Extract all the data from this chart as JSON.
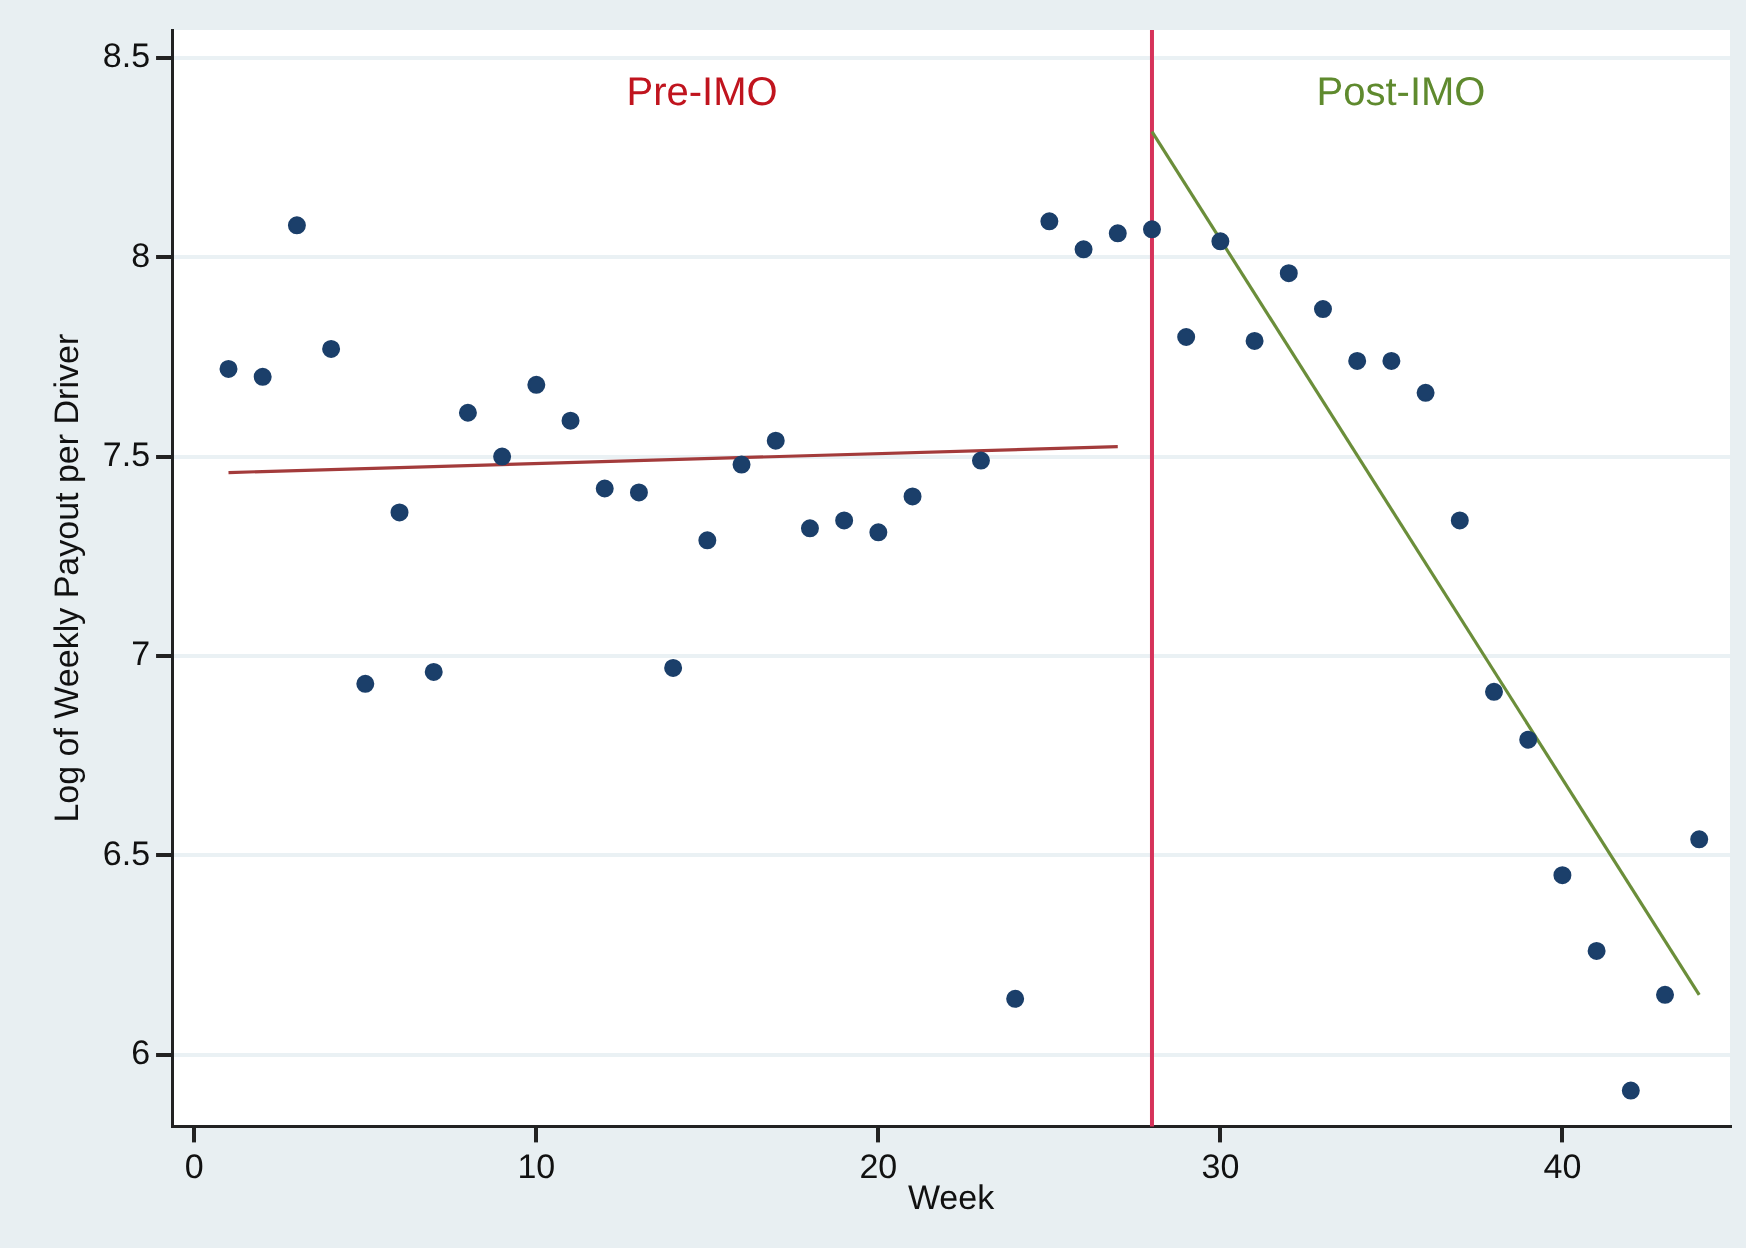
{
  "chart_data": {
    "type": "scatter",
    "xlabel": "Week",
    "ylabel": "Log of Weekly Payout per Driver",
    "xlim": [
      -0.65,
      44.9
    ],
    "xticks": [
      0,
      10,
      20,
      30,
      40
    ],
    "ylim": [
      5.82,
      8.57
    ],
    "yticks": [
      6,
      6.5,
      7,
      7.5,
      8,
      8.5
    ],
    "grid": "y",
    "legend": false,
    "series": [
      {
        "marker": "circle",
        "color": "#1b3f6a",
        "x": [
          1,
          2,
          3,
          4,
          5,
          6,
          7,
          8,
          9,
          10,
          11,
          12,
          13,
          14,
          15,
          16,
          17,
          18,
          19,
          20,
          21,
          23,
          24,
          25,
          26,
          27,
          28,
          29,
          30,
          31,
          32,
          33,
          34,
          35,
          36,
          37,
          38,
          39,
          40,
          41,
          42,
          43,
          44
        ],
        "values": [
          7.72,
          7.7,
          8.08,
          7.77,
          6.93,
          7.36,
          6.96,
          7.61,
          7.5,
          7.68,
          7.59,
          7.42,
          7.41,
          6.97,
          7.29,
          7.48,
          7.54,
          7.32,
          7.34,
          7.31,
          7.4,
          7.49,
          6.14,
          8.09,
          8.02,
          8.06,
          8.07,
          7.8,
          8.04,
          7.79,
          7.96,
          7.87,
          7.74,
          7.74,
          7.66,
          7.34,
          6.91,
          6.79,
          6.45,
          6.26,
          5.91,
          6.15,
          6.54
        ]
      },
      {
        "type": "line",
        "marker": "none",
        "color": "#a33b3b",
        "x": [
          1,
          27
        ],
        "values": [
          7.46,
          7.525
        ]
      },
      {
        "type": "line",
        "marker": "none",
        "color": "#6b8e3a",
        "x": [
          28,
          44
        ],
        "values": [
          8.315,
          6.15
        ]
      }
    ],
    "ref_lines": [
      {
        "axis": "x",
        "value": 28,
        "color": "#d6325a"
      }
    ],
    "annotations": [
      "Pre-IMO",
      "Post-IMO"
    ]
  }
}
